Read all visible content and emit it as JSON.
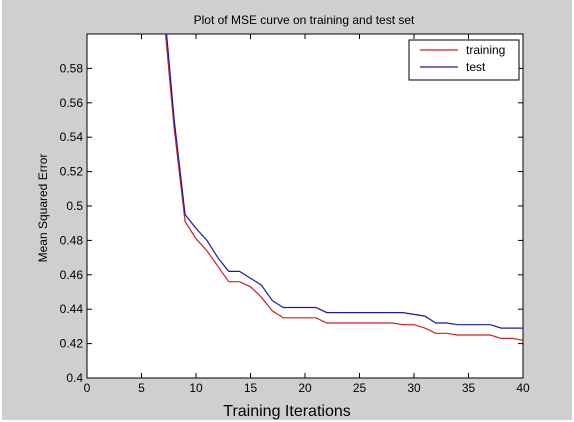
{
  "chart_data": {
    "type": "line",
    "title": "Plot of MSE curve on training and test set",
    "xlabel": "Training Iterations",
    "ylabel": "Mean Squared Error",
    "xlim": [
      0,
      40
    ],
    "ylim": [
      0.4,
      0.6
    ],
    "xticks": [
      0,
      5,
      10,
      15,
      20,
      25,
      30,
      35,
      40
    ],
    "yticks": [
      0.4,
      0.42,
      0.44,
      0.46,
      0.48,
      0.5,
      0.52,
      0.54,
      0.56,
      0.58
    ],
    "ytick_labels": [
      "0.4",
      "0.42",
      "0.44",
      "0.46",
      "0.48",
      "0.5",
      "0.52",
      "0.54",
      "0.56",
      "0.58"
    ],
    "grid": false,
    "legend_position": "top-right",
    "series": [
      {
        "name": "training",
        "color": "#cc2222",
        "x": [
          7.2,
          8,
          9,
          10,
          11,
          12,
          13,
          14,
          15,
          16,
          17,
          18,
          19,
          20,
          21,
          22,
          23,
          24,
          25,
          26,
          27,
          28,
          29,
          30,
          31,
          32,
          33,
          34,
          35,
          36,
          37,
          38,
          39,
          40
        ],
        "y": [
          0.6,
          0.545,
          0.491,
          0.481,
          0.474,
          0.465,
          0.456,
          0.456,
          0.453,
          0.447,
          0.439,
          0.435,
          0.435,
          0.435,
          0.435,
          0.432,
          0.432,
          0.432,
          0.432,
          0.432,
          0.432,
          0.432,
          0.431,
          0.431,
          0.429,
          0.426,
          0.426,
          0.425,
          0.425,
          0.425,
          0.425,
          0.423,
          0.423,
          0.422
        ]
      },
      {
        "name": "test",
        "color": "#1a1aa6",
        "x": [
          7.3,
          8,
          9,
          10,
          11,
          12,
          13,
          14,
          15,
          16,
          17,
          18,
          19,
          20,
          21,
          22,
          23,
          24,
          25,
          26,
          27,
          28,
          29,
          30,
          31,
          32,
          33,
          34,
          35,
          36,
          37,
          38,
          39,
          40
        ],
        "y": [
          0.6,
          0.55,
          0.495,
          0.487,
          0.48,
          0.47,
          0.462,
          0.462,
          0.458,
          0.454,
          0.445,
          0.441,
          0.441,
          0.441,
          0.441,
          0.438,
          0.438,
          0.438,
          0.438,
          0.438,
          0.438,
          0.438,
          0.438,
          0.437,
          0.436,
          0.432,
          0.432,
          0.431,
          0.431,
          0.431,
          0.431,
          0.429,
          0.429,
          0.429
        ]
      }
    ]
  }
}
